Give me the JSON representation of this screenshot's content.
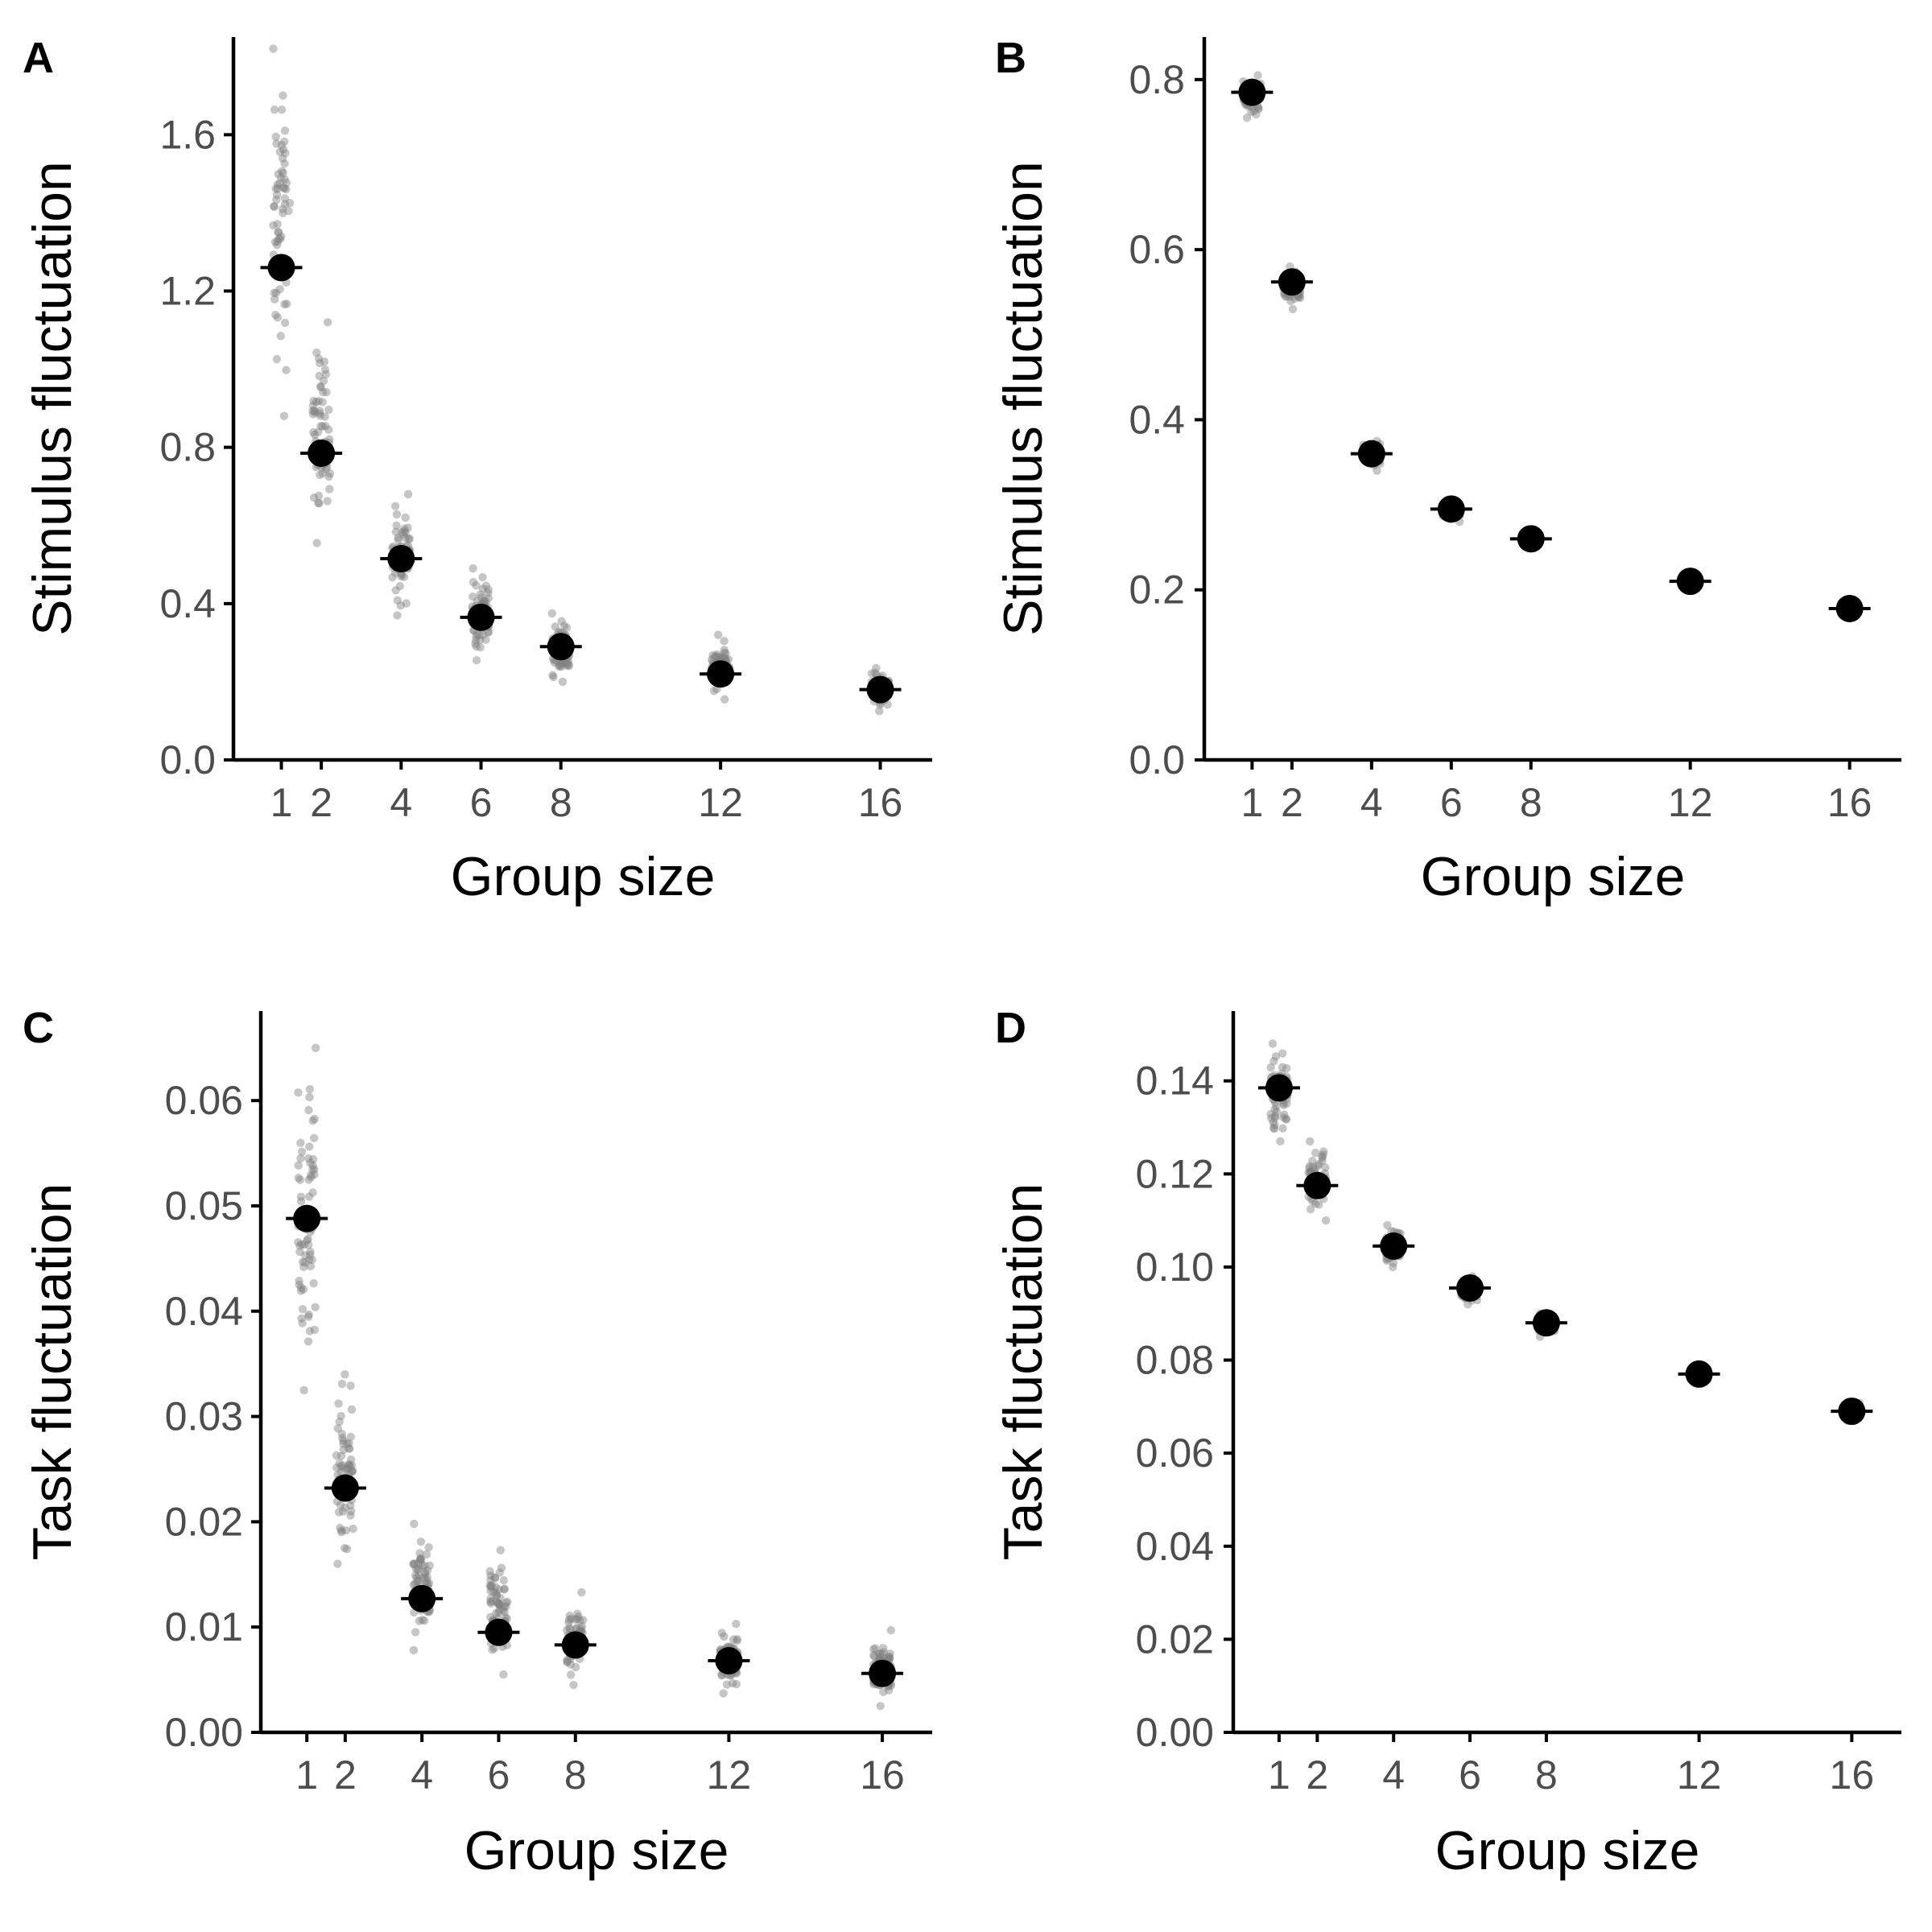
{
  "chart_data": [
    {
      "type": "scatter",
      "panel": "A",
      "xlabel": "Group size",
      "ylabel": "Stimulus fluctuation",
      "x_ticks": [
        1,
        2,
        4,
        6,
        8,
        12,
        16
      ],
      "y_ticks": [
        "0.0",
        "0.4",
        "0.8",
        "1.2",
        "1.6"
      ],
      "xlim": [
        -0.2,
        17.3
      ],
      "ylim": [
        0,
        1.85
      ],
      "grid": false,
      "legend": "none",
      "mean_color": "#000000",
      "replicate_color": "#808080",
      "series": [
        {
          "values": [
            {
              "x": 1,
              "mean": 1.26,
              "min": 0.88,
              "max": 1.82
            },
            {
              "x": 2,
              "mean": 0.785,
              "min": 0.555,
              "max": 1.12
            },
            {
              "x": 4,
              "mean": 0.515,
              "min": 0.37,
              "max": 0.68
            },
            {
              "x": 6,
              "mean": 0.365,
              "min": 0.255,
              "max": 0.49
            },
            {
              "x": 8,
              "mean": 0.29,
              "min": 0.2,
              "max": 0.375
            },
            {
              "x": 12,
              "mean": 0.22,
              "min": 0.155,
              "max": 0.32
            },
            {
              "x": 16,
              "mean": 0.18,
              "min": 0.125,
              "max": 0.235
            }
          ]
        }
      ]
    },
    {
      "type": "scatter",
      "panel": "B",
      "xlabel": "Group size",
      "ylabel": "Stimulus fluctuation",
      "x_ticks": [
        1,
        2,
        4,
        6,
        8,
        12,
        16
      ],
      "y_ticks": [
        "0.0",
        "0.2",
        "0.4",
        "0.6",
        "0.8"
      ],
      "xlim": [
        -0.2,
        17.3
      ],
      "ylim": [
        0,
        0.85
      ],
      "grid": false,
      "legend": "none",
      "mean_color": "#000000",
      "replicate_color": "#808080",
      "series": [
        {
          "values": [
            {
              "x": 1,
              "mean": 0.785,
              "min": 0.755,
              "max": 0.805
            },
            {
              "x": 2,
              "mean": 0.562,
              "min": 0.53,
              "max": 0.58
            },
            {
              "x": 4,
              "mean": 0.36,
              "min": 0.34,
              "max": 0.375
            },
            {
              "x": 6,
              "mean": 0.295,
              "min": 0.28,
              "max": 0.305
            },
            {
              "x": 8,
              "mean": 0.26,
              "min": 0.25,
              "max": 0.27
            },
            {
              "x": 12,
              "mean": 0.21,
              "min": 0.203,
              "max": 0.217
            },
            {
              "x": 16,
              "mean": 0.178,
              "min": 0.172,
              "max": 0.184
            }
          ]
        }
      ]
    },
    {
      "type": "scatter",
      "panel": "C",
      "xlabel": "Group size",
      "ylabel": "Task fluctuation",
      "x_ticks": [
        1,
        2,
        4,
        6,
        8,
        12,
        16
      ],
      "y_ticks": [
        "0.00",
        "0.01",
        "0.02",
        "0.03",
        "0.04",
        "0.05",
        "0.06"
      ],
      "xlim": [
        -0.2,
        17.3
      ],
      "ylim": [
        0,
        0.0685
      ],
      "grid": false,
      "legend": "none",
      "mean_color": "#000000",
      "replicate_color": "#808080",
      "series": [
        {
          "values": [
            {
              "x": 1,
              "mean": 0.0488,
              "min": 0.0325,
              "max": 0.065
            },
            {
              "x": 2,
              "mean": 0.0232,
              "min": 0.016,
              "max": 0.034
            },
            {
              "x": 4,
              "mean": 0.0127,
              "min": 0.0078,
              "max": 0.0198
            },
            {
              "x": 6,
              "mean": 0.0095,
              "min": 0.0055,
              "max": 0.0173
            },
            {
              "x": 8,
              "mean": 0.0083,
              "min": 0.0045,
              "max": 0.0133
            },
            {
              "x": 12,
              "mean": 0.0068,
              "min": 0.0037,
              "max": 0.0103
            },
            {
              "x": 16,
              "mean": 0.0056,
              "min": 0.0025,
              "max": 0.0097
            }
          ]
        }
      ]
    },
    {
      "type": "scatter",
      "panel": "D",
      "xlabel": "Group size",
      "ylabel": "Task fluctuation",
      "x_ticks": [
        1,
        2,
        4,
        6,
        8,
        12,
        16
      ],
      "y_ticks": [
        "0.00",
        "0.02",
        "0.04",
        "0.06",
        "0.08",
        "0.10",
        "0.12",
        "0.14"
      ],
      "xlim": [
        -0.2,
        17.3
      ],
      "ylim": [
        0,
        0.155
      ],
      "grid": false,
      "legend": "none",
      "mean_color": "#000000",
      "replicate_color": "#808080",
      "series": [
        {
          "values": [
            {
              "x": 1,
              "mean": 0.1385,
              "min": 0.127,
              "max": 0.148
            },
            {
              "x": 2,
              "mean": 0.1175,
              "min": 0.11,
              "max": 0.127
            },
            {
              "x": 4,
              "mean": 0.1045,
              "min": 0.1,
              "max": 0.109
            },
            {
              "x": 6,
              "mean": 0.0955,
              "min": 0.092,
              "max": 0.098
            },
            {
              "x": 8,
              "mean": 0.088,
              "min": 0.085,
              "max": 0.09
            },
            {
              "x": 12,
              "mean": 0.077,
              "min": 0.075,
              "max": 0.079
            },
            {
              "x": 16,
              "mean": 0.069,
              "min": 0.067,
              "max": 0.071
            }
          ]
        }
      ]
    }
  ]
}
